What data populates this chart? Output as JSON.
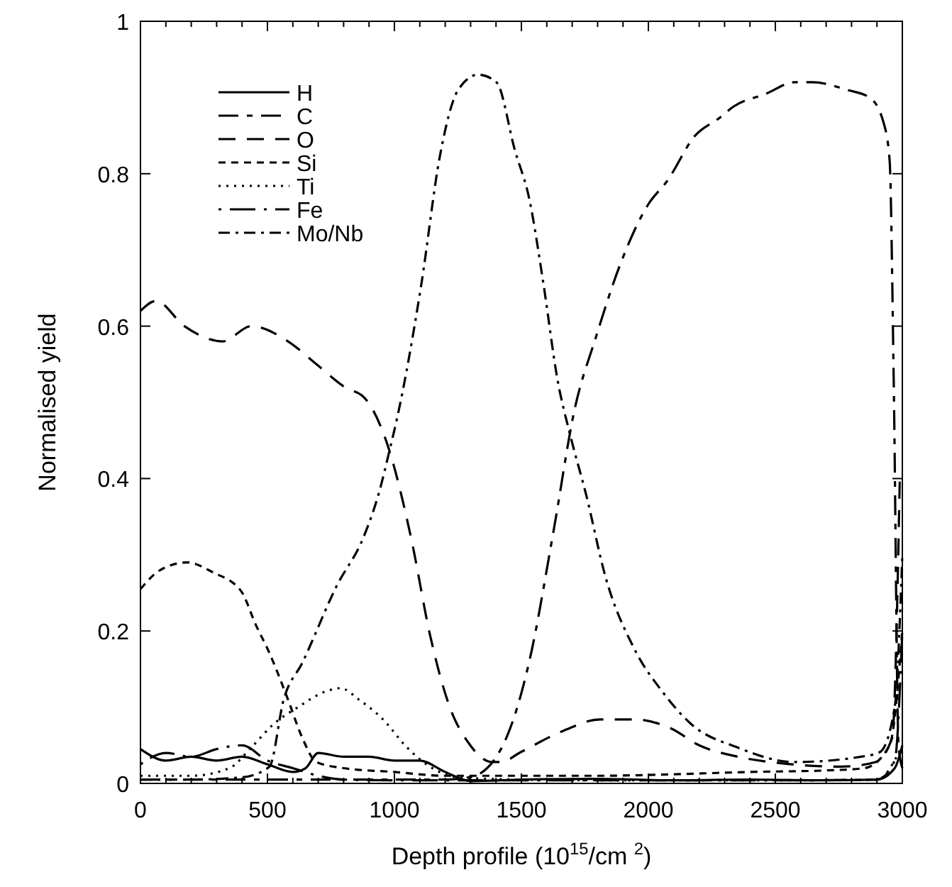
{
  "chart_data": {
    "type": "line",
    "xlabel": "Depth profile (10$^{15}$/cm $^{2}$)",
    "ylabel": "Normalised yield",
    "xlim": [
      0,
      3000
    ],
    "ylim": [
      0,
      1
    ],
    "xticks": [
      0,
      {
        "value": 100,
        "label": null
      },
      {
        "value": 200,
        "label": null
      },
      {
        "value": 300,
        "label": null
      },
      {
        "value": 400,
        "label": null
      },
      500,
      {
        "value": 600,
        "label": null
      },
      {
        "value": 700,
        "label": null
      },
      {
        "value": 800,
        "label": null
      },
      {
        "value": 900,
        "label": null
      },
      1000,
      {
        "value": 1100,
        "label": null
      },
      {
        "value": 1200,
        "label": null
      },
      {
        "value": 1300,
        "label": null
      },
      {
        "value": 1400,
        "label": null
      },
      1500,
      {
        "value": 1600,
        "label": null
      },
      {
        "value": 1700,
        "label": null
      },
      {
        "value": 1800,
        "label": null
      },
      {
        "value": 1900,
        "label": null
      },
      2000,
      {
        "value": 2100,
        "label": null
      },
      {
        "value": 2200,
        "label": null
      },
      {
        "value": 2300,
        "label": null
      },
      {
        "value": 2400,
        "label": null
      },
      2500,
      {
        "value": 2600,
        "label": null
      },
      {
        "value": 2700,
        "label": null
      },
      {
        "value": 2800,
        "label": null
      },
      {
        "value": 2900,
        "label": null
      },
      3000
    ],
    "yticks": [
      0,
      0.2,
      0.4,
      0.6,
      0.8,
      1
    ],
    "legend": "top left",
    "grid": false,
    "marker": "none",
    "series": [
      {
        "name": "H",
        "color": "#000000",
        "line_style": "solid",
        "x": [
          0,
          100,
          200,
          300,
          400,
          500,
          600,
          650,
          700,
          800,
          900,
          1000,
          1100,
          1200,
          1300,
          1500,
          1800,
          2100,
          2400,
          2700,
          2900,
          2970,
          3000
        ],
        "values": [
          0.045,
          0.03,
          0.035,
          0.03,
          0.035,
          0.025,
          0.015,
          0.02,
          0.04,
          0.035,
          0.035,
          0.03,
          0.03,
          0.015,
          0.003,
          0.005,
          0.006,
          0.004,
          0.005,
          0.004,
          0.005,
          0.02,
          0.05
        ]
      },
      {
        "name": "C",
        "color": "#000000",
        "line_style": "dashed",
        "x": [
          0,
          300,
          600,
          900,
          1200,
          1307,
          1441,
          1531,
          1626,
          1709,
          1793,
          1888,
          2000,
          2073,
          2184,
          2279,
          2335,
          2464,
          2575,
          2648,
          2782,
          2871,
          2927,
          2950,
          2966,
          2985,
          3000
        ],
        "values": [
          0.005,
          0.005,
          0.005,
          0.005,
          0.005,
          0.009,
          0.06,
          0.16,
          0.33,
          0.49,
          0.585,
          0.68,
          0.76,
          0.79,
          0.85,
          0.873,
          0.888,
          0.905,
          0.92,
          0.92,
          0.91,
          0.9,
          0.866,
          0.817,
          0.53,
          0.05,
          0.02
        ]
      },
      {
        "name": "O",
        "color": "#000000",
        "line_style": "dashed",
        "x": [
          0,
          61,
          173,
          324,
          436,
          581,
          693,
          804,
          882,
          972,
          1067,
          1140,
          1218,
          1290,
          1385,
          1420,
          1497,
          1665,
          1810,
          1944,
          2090,
          2200,
          2352,
          2536,
          2760,
          2894,
          2960,
          2990
        ],
        "values": [
          0.62,
          0.633,
          0.6,
          0.58,
          0.6,
          0.58,
          0.55,
          0.52,
          0.506,
          0.445,
          0.32,
          0.195,
          0.1,
          0.054,
          0.028,
          0.028,
          0.041,
          0.069,
          0.084,
          0.084,
          0.072,
          0.05,
          0.035,
          0.026,
          0.022,
          0.028,
          0.06,
          0.4
        ]
      },
      {
        "name": "Si",
        "color": "#000000",
        "line_style": "dashed",
        "x": [
          0,
          78,
          184,
          285,
          397,
          453,
          508,
          581,
          637,
          693,
          800,
          1000,
          1200,
          1500,
          1800,
          2100,
          2400,
          2700,
          2850,
          2950,
          3000
        ],
        "values": [
          0.255,
          0.28,
          0.29,
          0.277,
          0.252,
          0.209,
          0.171,
          0.11,
          0.06,
          0.028,
          0.02,
          0.015,
          0.01,
          0.01,
          0.01,
          0.012,
          0.015,
          0.017,
          0.02,
          0.05,
          0.2
        ]
      },
      {
        "name": "Ti",
        "color": "#000000",
        "line_style": "dotted",
        "x": [
          0,
          200,
          350,
          436,
          525,
          620,
          732,
          788,
          860,
          955,
          1050,
          1150,
          1250,
          1500,
          2000,
          2500,
          2900,
          3000
        ],
        "values": [
          0.01,
          0.01,
          0.02,
          0.047,
          0.078,
          0.1,
          0.121,
          0.125,
          0.11,
          0.084,
          0.047,
          0.02,
          0.008,
          0.005,
          0.004,
          0.004,
          0.005,
          0.05
        ]
      },
      {
        "name": "Fe",
        "color": "#000000",
        "line_style": "dashed",
        "x": [
          0,
          100,
          200,
          300,
          400,
          500,
          600,
          700,
          800,
          1000,
          1500,
          2000,
          2500,
          2900,
          2970,
          3000
        ],
        "values": [
          0.025,
          0.04,
          0.035,
          0.045,
          0.05,
          0.03,
          0.02,
          0.01,
          0.005,
          0.004,
          0.004,
          0.004,
          0.004,
          0.005,
          0.03,
          0.2
        ]
      },
      {
        "name": "Mo/Nb",
        "color": "#000000",
        "line_style": "dashed",
        "x": [
          0,
          200,
          400,
          508,
          564,
          637,
          771,
          882,
          938,
          983,
          1011,
          1106,
          1179,
          1251,
          1330,
          1402,
          1475,
          1531,
          1587,
          1642,
          1693,
          1754,
          1832,
          1944,
          2056,
          2168,
          2352,
          2575,
          2838,
          2911,
          2970,
          3000
        ],
        "values": [
          0.005,
          0.005,
          0.008,
          0.022,
          0.11,
          0.158,
          0.258,
          0.326,
          0.38,
          0.44,
          0.48,
          0.655,
          0.823,
          0.91,
          0.93,
          0.92,
          0.83,
          0.767,
          0.655,
          0.53,
          0.456,
          0.38,
          0.27,
          0.177,
          0.12,
          0.078,
          0.047,
          0.028,
          0.035,
          0.041,
          0.1,
          0.3
        ]
      }
    ]
  }
}
